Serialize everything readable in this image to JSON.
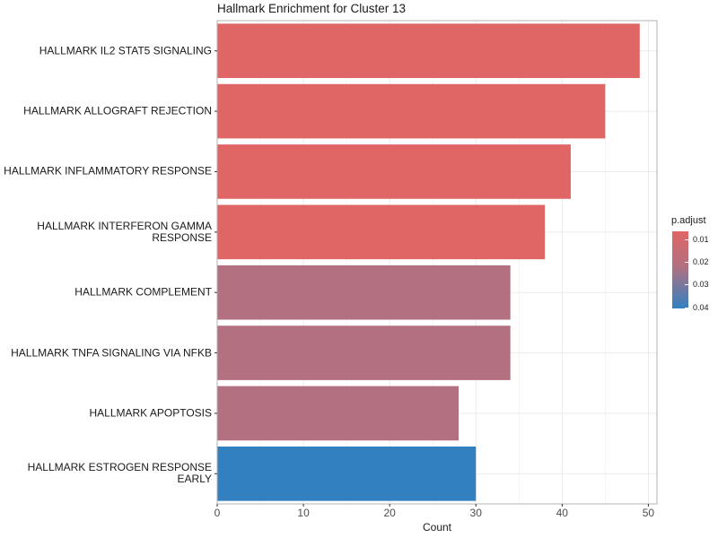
{
  "chart_data": {
    "type": "bar",
    "orientation": "horizontal",
    "title": "Hallmark Enrichment for Cluster 13",
    "xlabel": "Count",
    "ylabel": "",
    "xlim": [
      0,
      51
    ],
    "x_ticks": [
      "0",
      "10",
      "20",
      "30",
      "40",
      "50"
    ],
    "categories": [
      "HALLMARK IL2 STAT5 SIGNALING",
      "HALLMARK ALLOGRAFT REJECTION",
      "HALLMARK INFLAMMATORY RESPONSE",
      "HALLMARK INTERFERON GAMMA RESPONSE",
      "HALLMARK COMPLEMENT",
      "HALLMARK TNFA SIGNALING VIA NFKB",
      "HALLMARK APOPTOSIS",
      "HALLMARK ESTROGEN RESPONSE EARLY"
    ],
    "values": [
      49,
      45,
      41,
      38,
      34,
      34,
      28,
      30
    ],
    "bar_colors": [
      "#e06666",
      "#e06666",
      "#e06666",
      "#e06666",
      "#b37080",
      "#b37080",
      "#b37080",
      "#3380c0"
    ],
    "grid": true,
    "legend": {
      "title": "p.adjust",
      "labels": [
        "0.01",
        "0.02",
        "0.03",
        "0.04"
      ],
      "color_high": "#e06666",
      "color_low": "#3380c0",
      "placement": "right"
    }
  }
}
